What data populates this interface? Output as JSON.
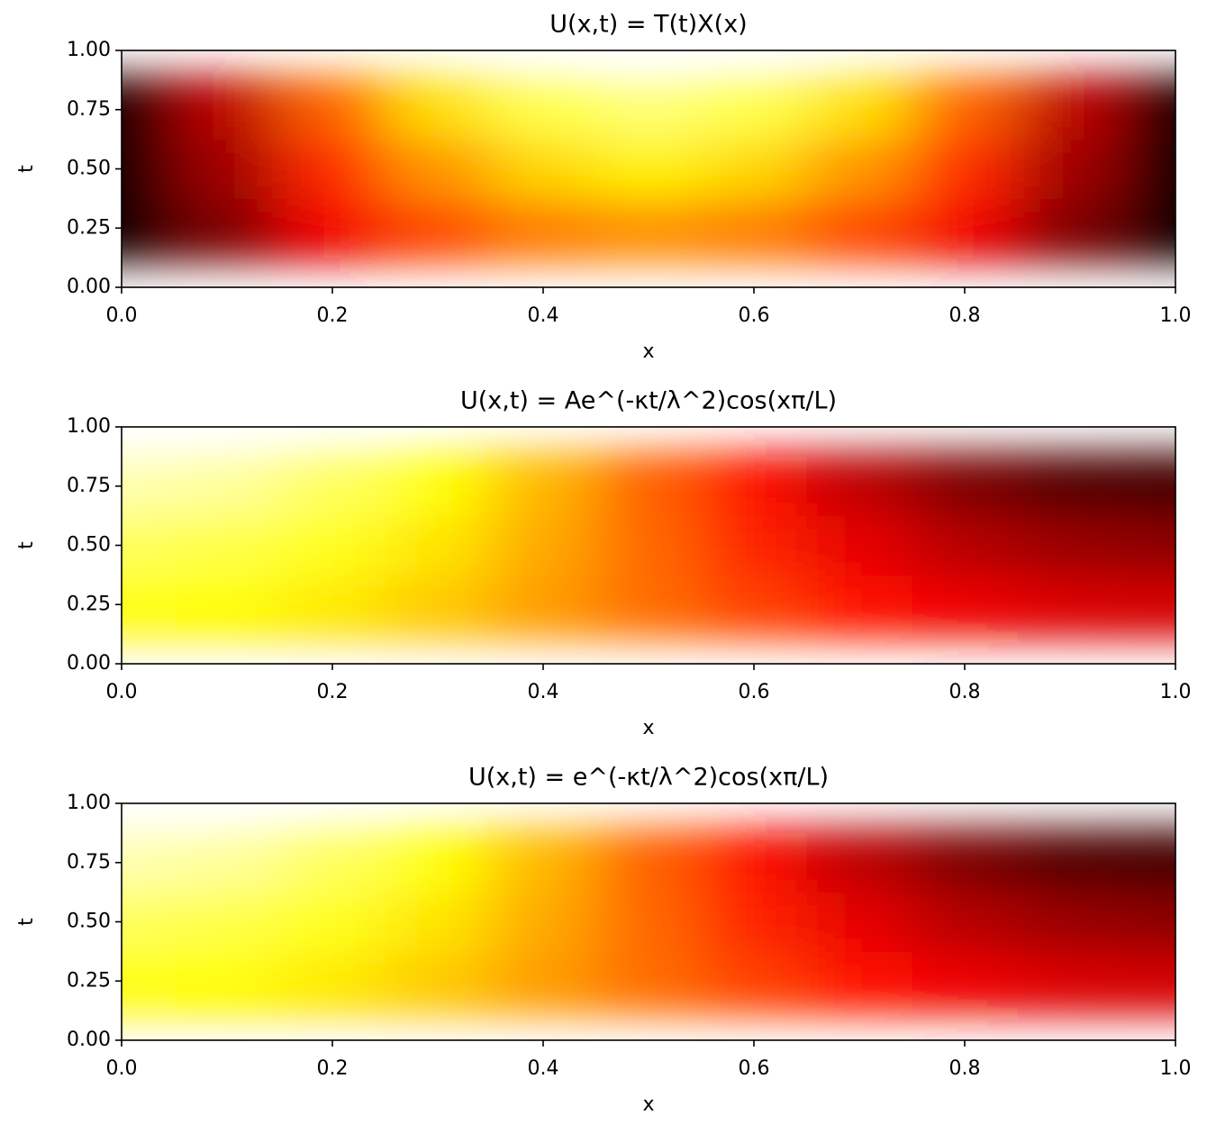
{
  "chart_data": [
    {
      "type": "heatmap",
      "title": "U(x,t) = T(t)X(x)",
      "xlabel": "x",
      "ylabel": "t",
      "colormap": "hot",
      "x": [
        0,
        0.1,
        0.2,
        0.3,
        0.4,
        0.5,
        0.6,
        0.7,
        0.8,
        0.9,
        1
      ],
      "y": [
        0,
        0.25,
        0.5,
        0.75,
        1
      ],
      "z": [
        [
          0,
          0.14,
          0.27,
          0.36,
          0.43,
          0.45,
          0.43,
          0.36,
          0.27,
          0.14,
          0
        ],
        [
          0,
          0.18,
          0.35,
          0.48,
          0.56,
          0.59,
          0.56,
          0.48,
          0.35,
          0.18,
          0
        ],
        [
          0,
          0.23,
          0.43,
          0.59,
          0.69,
          0.73,
          0.69,
          0.59,
          0.43,
          0.23,
          0
        ],
        [
          0,
          0.27,
          0.51,
          0.7,
          0.82,
          0.86,
          0.82,
          0.7,
          0.51,
          0.27,
          0
        ],
        [
          0,
          0.31,
          0.59,
          0.81,
          0.95,
          1,
          0.95,
          0.81,
          0.59,
          0.31,
          0
        ]
      ],
      "xlim": [
        0,
        1
      ],
      "ylim": [
        0,
        1
      ],
      "xticks": [
        {
          "value": 0,
          "label": "0.0"
        },
        {
          "value": 0.2,
          "label": "0.2"
        },
        {
          "value": 0.4,
          "label": "0.4"
        },
        {
          "value": 0.6,
          "label": "0.6"
        },
        {
          "value": 0.8,
          "label": "0.8"
        },
        {
          "value": 1,
          "label": "1.0"
        }
      ],
      "yticks": [
        {
          "value": 0,
          "label": "0.00"
        },
        {
          "value": 0.25,
          "label": "0.25"
        },
        {
          "value": 0.5,
          "label": "0.50"
        },
        {
          "value": 0.75,
          "label": "0.75"
        },
        {
          "value": 1,
          "label": "1.00"
        }
      ]
    },
    {
      "type": "heatmap",
      "title": "U(x,t) = Ae^(-κt/λ^2)cos(xπ/L)",
      "xlabel": "x",
      "ylabel": "t",
      "colormap": "hot",
      "x": [
        0,
        0.1,
        0.2,
        0.3,
        0.4,
        0.5,
        0.6,
        0.7,
        0.8,
        0.9,
        1
      ],
      "y": [
        0,
        0.25,
        0.5,
        0.75,
        1
      ],
      "z": [
        [
          0.68,
          0.67,
          0.65,
          0.62,
          0.58,
          0.54,
          0.5,
          0.46,
          0.43,
          0.41,
          0.4
        ],
        [
          0.76,
          0.75,
          0.72,
          0.67,
          0.6,
          0.53,
          0.46,
          0.39,
          0.34,
          0.31,
          0.3
        ],
        [
          0.84,
          0.82,
          0.78,
          0.71,
          0.62,
          0.52,
          0.42,
          0.33,
          0.26,
          0.22,
          0.2
        ],
        [
          0.92,
          0.9,
          0.84,
          0.75,
          0.64,
          0.51,
          0.38,
          0.27,
          0.18,
          0.12,
          0.1
        ],
        [
          1,
          0.98,
          0.91,
          0.8,
          0.66,
          0.5,
          0.35,
          0.21,
          0.1,
          0.03,
          0
        ]
      ],
      "xlim": [
        0,
        1
      ],
      "ylim": [
        0,
        1
      ],
      "xticks": [
        {
          "value": 0,
          "label": "0.0"
        },
        {
          "value": 0.2,
          "label": "0.2"
        },
        {
          "value": 0.4,
          "label": "0.4"
        },
        {
          "value": 0.6,
          "label": "0.6"
        },
        {
          "value": 0.8,
          "label": "0.8"
        },
        {
          "value": 1,
          "label": "1.0"
        }
      ],
      "yticks": [
        {
          "value": 0,
          "label": "0.00"
        },
        {
          "value": 0.25,
          "label": "0.25"
        },
        {
          "value": 0.5,
          "label": "0.50"
        },
        {
          "value": 0.75,
          "label": "0.75"
        },
        {
          "value": 1,
          "label": "1.00"
        }
      ]
    },
    {
      "type": "heatmap",
      "title": "U(x,t) = e^(-κt/λ^2)cos(xπ/L)",
      "xlabel": "x",
      "ylabel": "t",
      "colormap": "hot",
      "x": [
        0,
        0.1,
        0.2,
        0.3,
        0.4,
        0.5,
        0.6,
        0.7,
        0.8,
        0.9,
        1
      ],
      "y": [
        0,
        0.25,
        0.5,
        0.75,
        1
      ],
      "z": [
        [
          0.68,
          0.67,
          0.65,
          0.62,
          0.58,
          0.54,
          0.5,
          0.46,
          0.43,
          0.41,
          0.4
        ],
        [
          0.76,
          0.75,
          0.72,
          0.67,
          0.6,
          0.53,
          0.46,
          0.39,
          0.34,
          0.31,
          0.3
        ],
        [
          0.84,
          0.82,
          0.78,
          0.71,
          0.62,
          0.52,
          0.42,
          0.33,
          0.26,
          0.22,
          0.2
        ],
        [
          0.92,
          0.9,
          0.84,
          0.75,
          0.64,
          0.51,
          0.38,
          0.27,
          0.18,
          0.12,
          0.1
        ],
        [
          1,
          0.98,
          0.91,
          0.8,
          0.66,
          0.5,
          0.35,
          0.21,
          0.1,
          0.03,
          0
        ]
      ],
      "xlim": [
        0,
        1
      ],
      "ylim": [
        0,
        1
      ],
      "xticks": [
        {
          "value": 0,
          "label": "0.0"
        },
        {
          "value": 0.2,
          "label": "0.2"
        },
        {
          "value": 0.4,
          "label": "0.4"
        },
        {
          "value": 0.6,
          "label": "0.6"
        },
        {
          "value": 0.8,
          "label": "0.8"
        },
        {
          "value": 1,
          "label": "1.0"
        }
      ],
      "yticks": [
        {
          "value": 0,
          "label": "0.00"
        },
        {
          "value": 0.25,
          "label": "0.25"
        },
        {
          "value": 0.5,
          "label": "0.50"
        },
        {
          "value": 0.75,
          "label": "0.75"
        },
        {
          "value": 1,
          "label": "1.00"
        }
      ]
    }
  ]
}
